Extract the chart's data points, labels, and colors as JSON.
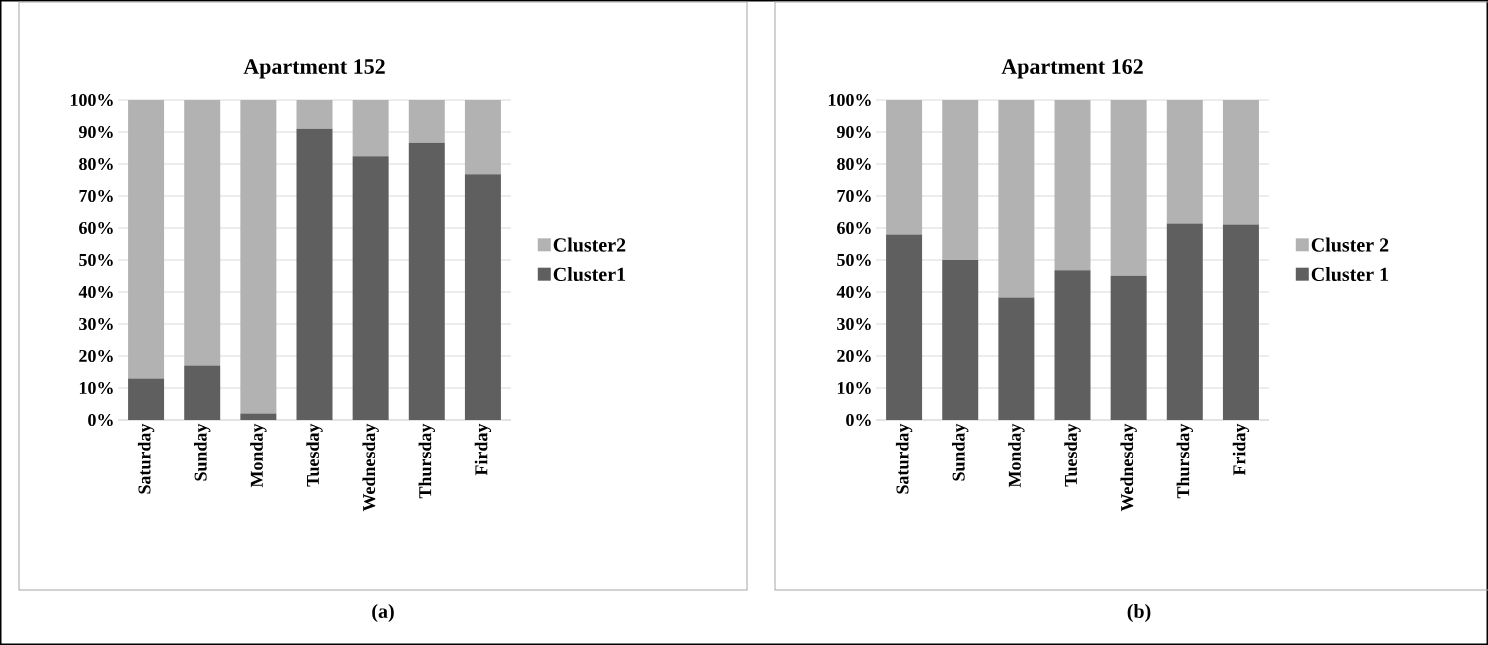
{
  "chart_data": [
    {
      "type": "bar",
      "title": "Apartment 152",
      "stacked": true,
      "grid": "y",
      "legend": "right",
      "categories": [
        "Saturday",
        "Sunday",
        "Monday",
        "Tuesday",
        "Wednesday",
        "Thursday",
        "Firday"
      ],
      "series": [
        {
          "name": "Cluster1",
          "color": "#5f5f5f",
          "values": [
            13,
            17,
            2,
            91,
            82.4,
            86.6,
            76.8
          ]
        },
        {
          "name": "Cluster2",
          "color": "#b2b2b2",
          "values": [
            87,
            83,
            98,
            9,
            17.6,
            13.4,
            23.2
          ]
        }
      ],
      "ylim": [
        0,
        100
      ],
      "yticks": [
        {
          "value": 0,
          "label": "0%"
        },
        {
          "value": 10,
          "label": "10%"
        },
        {
          "value": 20,
          "label": "20%"
        },
        {
          "value": 30,
          "label": "30%"
        },
        {
          "value": 40,
          "label": "40%"
        },
        {
          "value": 50,
          "label": "50%"
        },
        {
          "value": 60,
          "label": "60%"
        },
        {
          "value": 70,
          "label": "70%"
        },
        {
          "value": 80,
          "label": "80%"
        },
        {
          "value": 90,
          "label": "90%"
        },
        {
          "value": 100,
          "label": "100%"
        }
      ],
      "annotations": [
        "(a)"
      ]
    },
    {
      "type": "bar",
      "title": "Apartment 162",
      "stacked": true,
      "grid": "y",
      "legend": "right",
      "categories": [
        "Saturday",
        "Sunday",
        "Monday",
        "Tuesday",
        "Wednesday",
        "Thursday",
        "Friday"
      ],
      "series": [
        {
          "name": "Cluster 1",
          "color": "#5f5f5f",
          "values": [
            58,
            50,
            38.3,
            46.8,
            45.1,
            61.4,
            61.1
          ]
        },
        {
          "name": "Cluster 2",
          "color": "#b2b2b2",
          "values": [
            42,
            50,
            61.7,
            53.2,
            54.9,
            38.6,
            38.9
          ]
        }
      ],
      "ylim": [
        0,
        100
      ],
      "yticks": [
        {
          "value": 0,
          "label": "0%"
        },
        {
          "value": 10,
          "label": "10%"
        },
        {
          "value": 20,
          "label": "20%"
        },
        {
          "value": 30,
          "label": "30%"
        },
        {
          "value": 40,
          "label": "40%"
        },
        {
          "value": 50,
          "label": "50%"
        },
        {
          "value": 60,
          "label": "60%"
        },
        {
          "value": 70,
          "label": "70%"
        },
        {
          "value": 80,
          "label": "80%"
        },
        {
          "value": 90,
          "label": "90%"
        },
        {
          "value": 100,
          "label": "100%"
        }
      ],
      "annotations": [
        "(b)"
      ]
    }
  ]
}
